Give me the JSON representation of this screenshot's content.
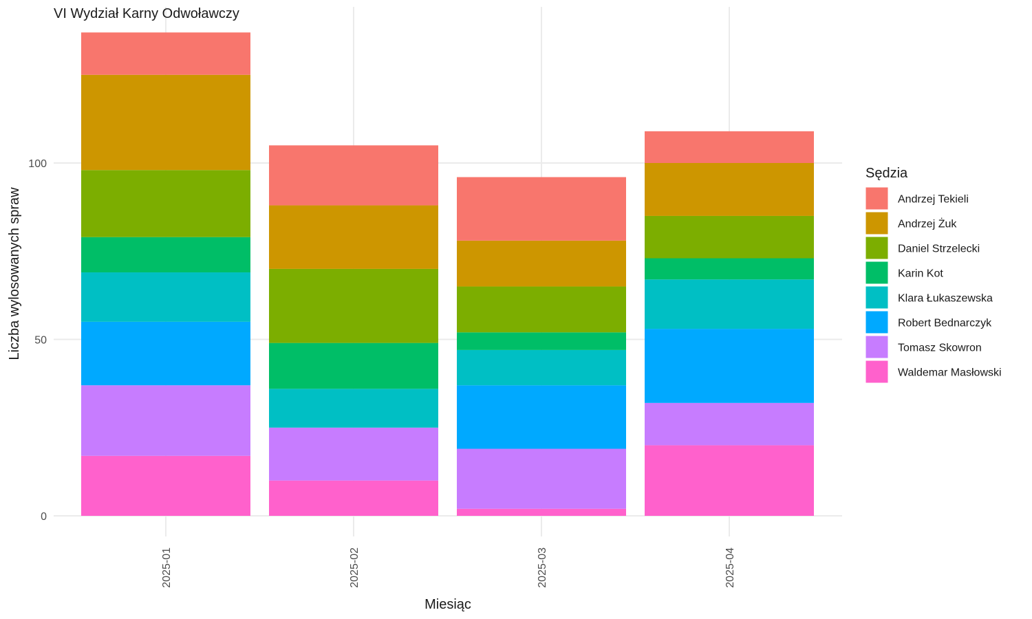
{
  "chart_data": {
    "type": "bar",
    "stacked": true,
    "title": "VI Wydział Karny Odwoławczy",
    "xlabel": "Miesiąc",
    "ylabel": "Liczba wylosowanych spraw",
    "categories": [
      "2025-01",
      "2025-02",
      "2025-03",
      "2025-04"
    ],
    "ylim": [
      0,
      137
    ],
    "yticks": [
      0,
      50,
      100
    ],
    "grid": true,
    "legend": {
      "title": "Sędzia",
      "placement": "right"
    },
    "series": [
      {
        "name": "Andrzej Tekieli",
        "color": "#F8766D",
        "values": [
          12,
          17,
          18,
          9
        ]
      },
      {
        "name": "Andrzej Żuk",
        "color": "#CD9600",
        "values": [
          27,
          18,
          13,
          15
        ]
      },
      {
        "name": "Daniel Strzelecki",
        "color": "#7CAE00",
        "values": [
          19,
          21,
          13,
          12
        ]
      },
      {
        "name": "Karin Kot",
        "color": "#00BE67",
        "values": [
          10,
          13,
          5,
          6
        ]
      },
      {
        "name": "Klara Łukaszewska",
        "color": "#00BFC4",
        "values": [
          14,
          11,
          10,
          14
        ]
      },
      {
        "name": "Robert Bednarczyk",
        "color": "#00A9FF",
        "values": [
          18,
          0,
          18,
          21
        ]
      },
      {
        "name": "Tomasz Skowron",
        "color": "#C77CFF",
        "values": [
          20,
          15,
          17,
          12
        ]
      },
      {
        "name": "Waldemar Masłowski",
        "color": "#FF61CC",
        "values": [
          17,
          10,
          2,
          20
        ]
      }
    ]
  }
}
